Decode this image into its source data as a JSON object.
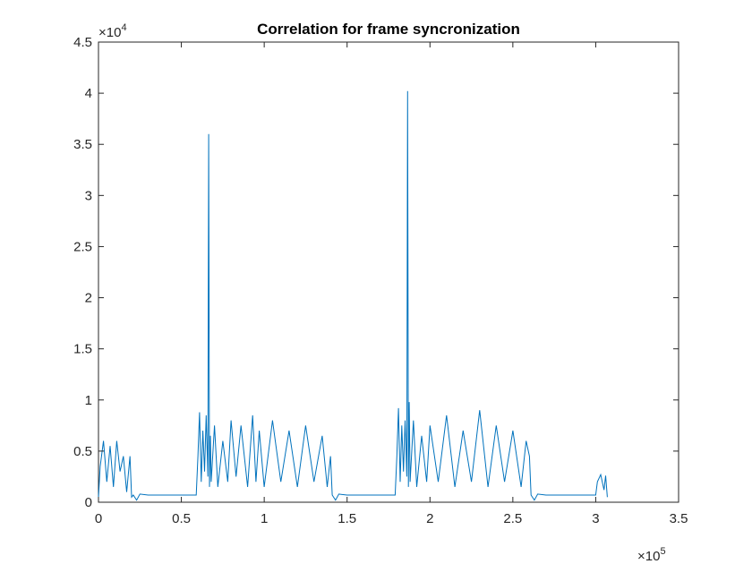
{
  "chart_data": {
    "type": "line",
    "title": "Correlation for frame syncronization",
    "xlabel": "",
    "ylabel": "",
    "xlim": [
      0,
      350000
    ],
    "ylim": [
      0,
      45000
    ],
    "x_ticks": [
      0,
      50000,
      100000,
      150000,
      200000,
      250000,
      300000,
      350000
    ],
    "x_tick_labels": [
      "0",
      "0.5",
      "1",
      "1.5",
      "2",
      "2.5",
      "3",
      "3.5"
    ],
    "y_ticks": [
      0,
      5000,
      10000,
      15000,
      20000,
      25000,
      30000,
      35000,
      40000,
      45000
    ],
    "y_tick_labels": [
      "0",
      "0.5",
      "1",
      "1.5",
      "2",
      "2.5",
      "3",
      "3.5",
      "4",
      "4.5"
    ],
    "x_exponent": {
      "base": "×10",
      "power": "5"
    },
    "y_exponent": {
      "base": "×10",
      "power": "4"
    },
    "grid": false,
    "line_color": "#0072BD",
    "series": [
      {
        "x": [
          0,
          1000,
          3000,
          5000,
          7000,
          9000,
          11000,
          13000,
          15000,
          17000,
          19000,
          20000,
          21000,
          23000,
          25000,
          30000,
          40000,
          50000,
          59000,
          60000,
          61000,
          62000,
          63000,
          64000,
          65000,
          66000,
          66500,
          67000,
          67500,
          68000,
          70000,
          72000,
          75000,
          78000,
          80000,
          83000,
          86000,
          90000,
          93000,
          95000,
          97000,
          100000,
          105000,
          110000,
          115000,
          120000,
          125000,
          130000,
          135000,
          138000,
          140000,
          141000,
          143000,
          145000,
          150000,
          160000,
          170000,
          179000,
          180000,
          181000,
          182000,
          183000,
          184000,
          185000,
          186000,
          186500,
          187000,
          187500,
          188000,
          190000,
          192000,
          195000,
          198000,
          200000,
          205000,
          210000,
          215000,
          220000,
          225000,
          230000,
          235000,
          240000,
          245000,
          250000,
          255000,
          258000,
          260000,
          261000,
          263000,
          265000,
          270000,
          280000,
          290000,
          300000,
          301000,
          303000,
          305000,
          306000,
          307000
        ],
        "y": [
          500,
          3500,
          6000,
          2000,
          5500,
          1500,
          6000,
          3000,
          4500,
          1000,
          4500,
          500,
          700,
          200,
          800,
          700,
          700,
          700,
          700,
          4500,
          8800,
          2000,
          7000,
          3000,
          8500,
          2500,
          36000,
          1500,
          6500,
          2000,
          7500,
          1500,
          6000,
          2000,
          8000,
          2500,
          7500,
          1500,
          8500,
          2000,
          7000,
          1500,
          8000,
          2000,
          7000,
          1500,
          7500,
          2000,
          6500,
          1500,
          4500,
          700,
          200,
          800,
          700,
          700,
          700,
          700,
          4500,
          9200,
          2000,
          7500,
          3000,
          8000,
          2500,
          40200,
          1500,
          9800,
          2000,
          8000,
          1500,
          6500,
          2000,
          7500,
          2000,
          8500,
          1500,
          7000,
          2000,
          9000,
          1500,
          7500,
          2000,
          7000,
          1500,
          6000,
          4500,
          700,
          200,
          800,
          700,
          700,
          700,
          700,
          2000,
          2700,
          1200,
          2600,
          500
        ]
      }
    ]
  }
}
